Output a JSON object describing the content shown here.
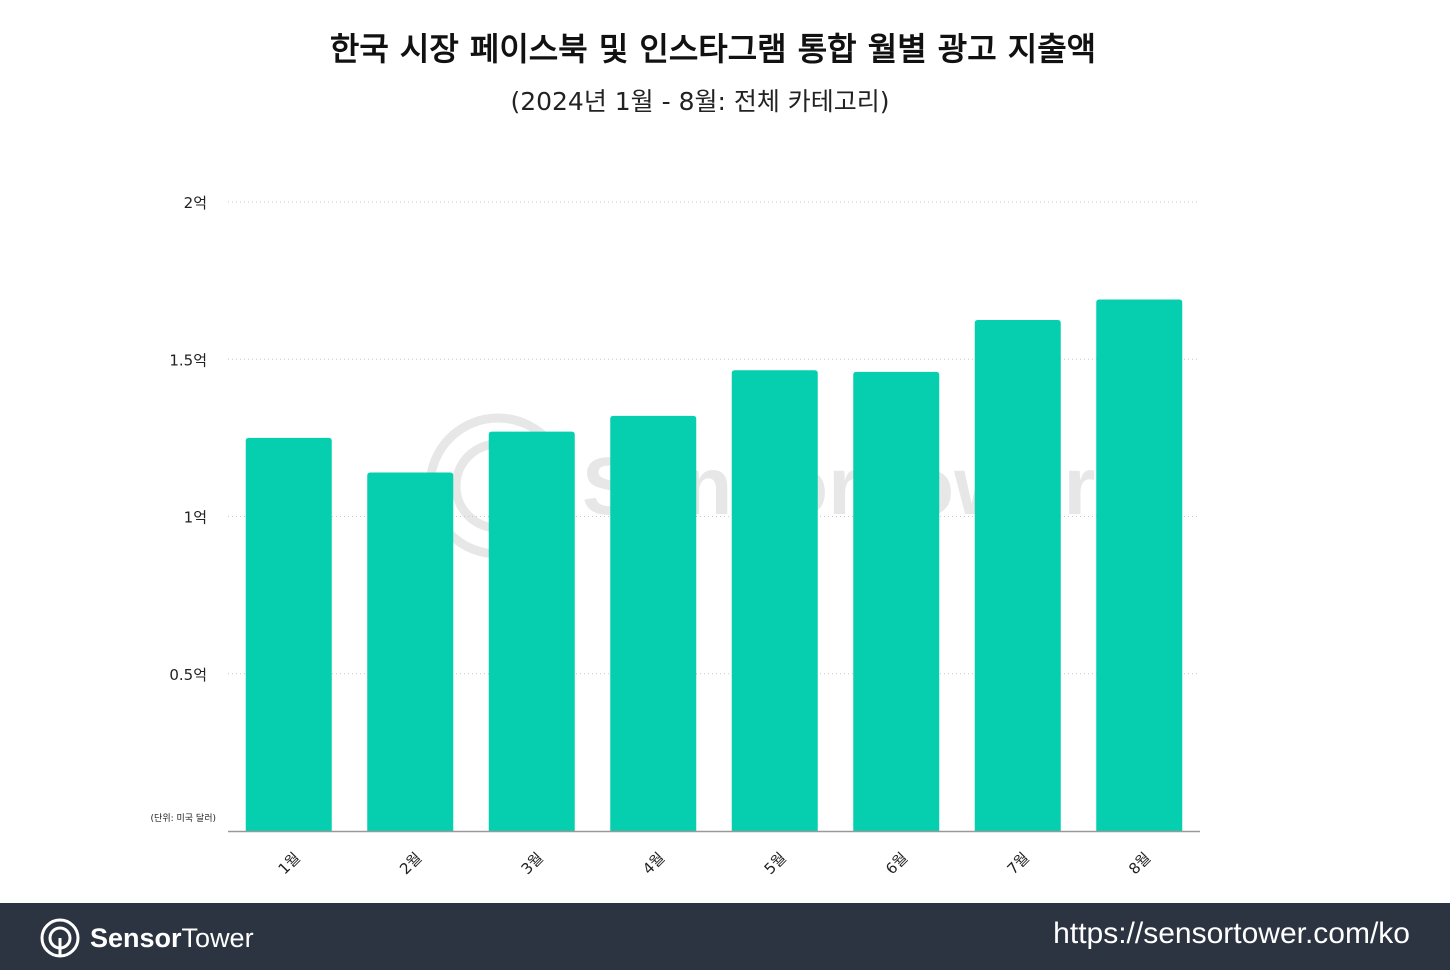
{
  "header": {
    "title": "한국 시장 페이스북 및 인스타그램 통합 월별 광고 지출액",
    "subtitle": "(2024년 1월 - 8월: 전체 카테고리)"
  },
  "chart_data": {
    "type": "bar",
    "categories": [
      "1월",
      "2월",
      "3월",
      "4월",
      "5월",
      "6월",
      "7월",
      "8월"
    ],
    "values": [
      125000000,
      114000000,
      127000000,
      132000000,
      146500000,
      146000000,
      162500000,
      169000000
    ],
    "ylim": [
      0,
      200000000
    ],
    "yticks": [
      {
        "value": 50000000,
        "label": "0.5억"
      },
      {
        "value": 100000000,
        "label": "1억"
      },
      {
        "value": 150000000,
        "label": "1.5억"
      },
      {
        "value": 200000000,
        "label": "2억"
      }
    ],
    "unit_note": "(단위: 미국 달러)",
    "bar_color": "#06cfb0",
    "grid": true,
    "watermark": "SensorTower"
  },
  "footer": {
    "brand_bold": "Sensor",
    "brand_regular": "Tower",
    "url": "https://sensortower.com/ko",
    "background": "#2b3440"
  }
}
